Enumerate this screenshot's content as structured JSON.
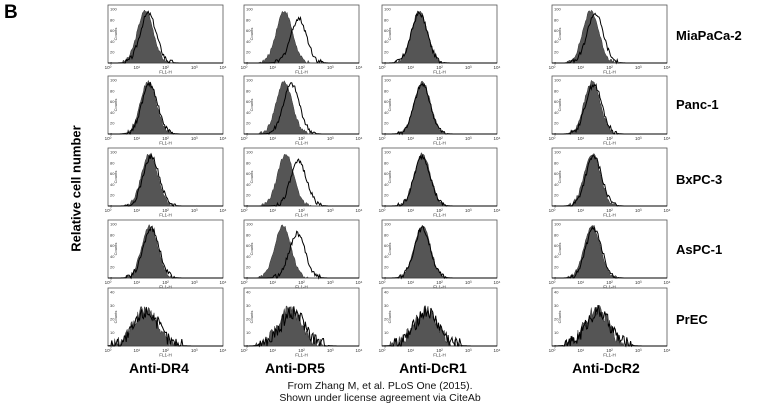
{
  "figure": {
    "panel_letter": "B",
    "y_axis_label": "Relative cell number",
    "x_axis_tick_label": "FL1-H",
    "y_axis_tick_label": "Counts",
    "credit_line1": "From Zhang M, et al. PLoS One (2015).",
    "credit_line2": "Shown under license agreement via CiteAb"
  },
  "chart_data": {
    "type": "histogram-grid",
    "rows": [
      "MiaPaCa-2",
      "Panc-1",
      "BxPC-3",
      "AsPC-1",
      "PrEC"
    ],
    "columns": [
      "Anti-DR4",
      "Anti-DR5",
      "Anti-DcR1",
      "Anti-DcR2"
    ],
    "x_scale": "log",
    "x_range": [
      1,
      10000
    ],
    "x_ticks": [
      "10⁰",
      "10¹",
      "10²",
      "10³",
      "10⁴"
    ],
    "y_ticks_rows_1_4": [
      0,
      20,
      40,
      60,
      80,
      100
    ],
    "y_ticks_row_5": [
      0,
      10,
      20,
      30,
      40
    ],
    "filled_series": "isotype control (gray)",
    "outline_series": "antibody staining (black line)",
    "peaks_log10": [
      [
        [
          1.3,
          1.4
        ],
        [
          1.4,
          1.9
        ],
        [
          1.3,
          1.3
        ],
        [
          1.35,
          1.5
        ]
      ],
      [
        [
          1.4,
          1.45
        ],
        [
          1.4,
          1.65
        ],
        [
          1.4,
          1.4
        ],
        [
          1.4,
          1.45
        ]
      ],
      [
        [
          1.45,
          1.5
        ],
        [
          1.45,
          1.9
        ],
        [
          1.4,
          1.4
        ],
        [
          1.4,
          1.45
        ]
      ],
      [
        [
          1.45,
          1.5
        ],
        [
          1.35,
          1.85
        ],
        [
          1.4,
          1.4
        ],
        [
          1.4,
          1.45
        ]
      ],
      [
        [
          1.3,
          1.35
        ],
        [
          1.6,
          1.7
        ],
        [
          1.5,
          1.55
        ],
        [
          1.55,
          1.6
        ]
      ]
    ]
  }
}
